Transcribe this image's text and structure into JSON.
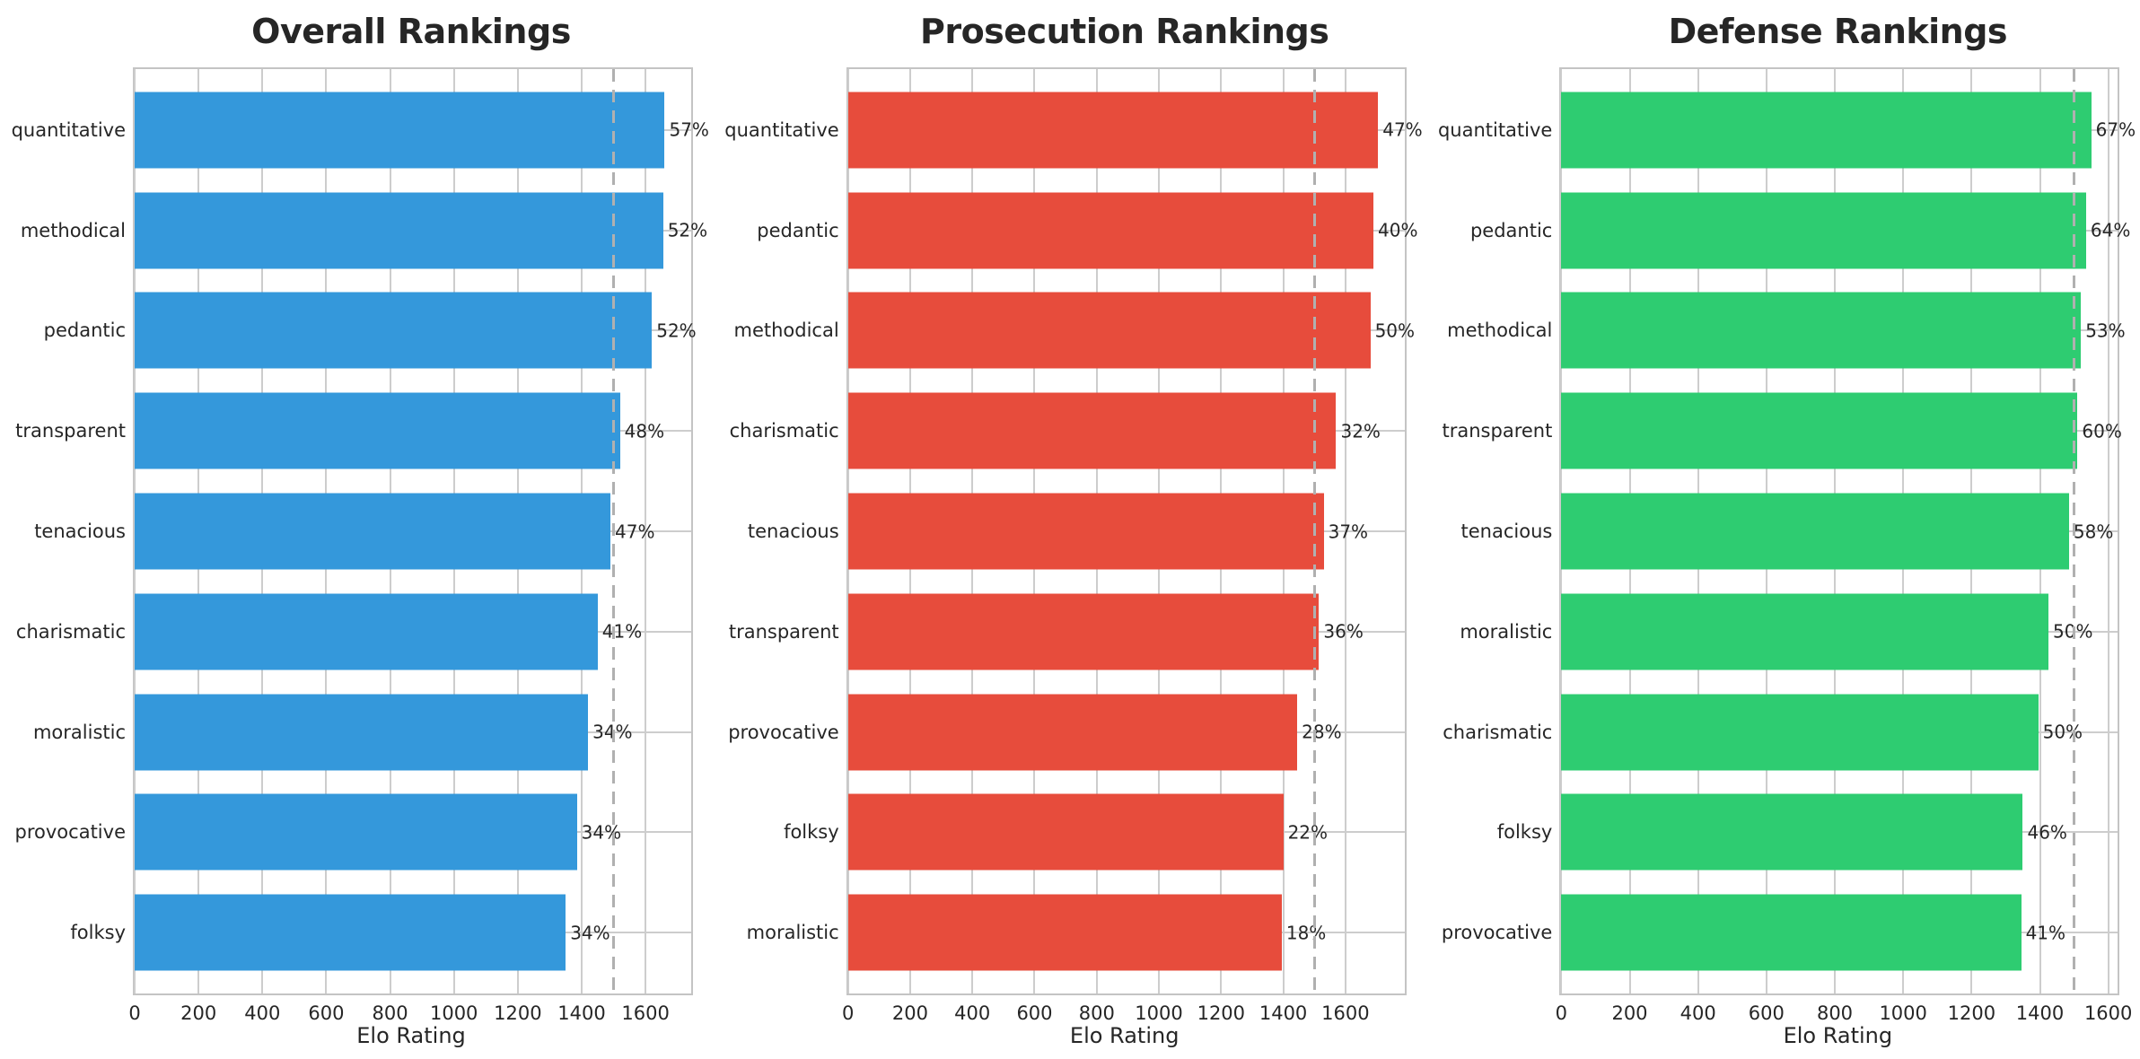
{
  "figure": {
    "background": "#ffffff",
    "grid_color": "#cdcdcd",
    "spine_color": "#c4c4c4",
    "baseline_color": "#b0b0b0",
    "text_color": "#262626"
  },
  "chart_data": [
    {
      "type": "bar",
      "orientation": "horizontal",
      "title": "Overall Rankings",
      "xlabel": "Elo Rating",
      "color": "#3498db",
      "baseline_elo": 1500,
      "xlim": [
        0,
        1743
      ],
      "xticks": [
        0,
        200,
        400,
        600,
        800,
        1000,
        1200,
        1400,
        1600
      ],
      "grid": true,
      "categories": [
        "quantitative",
        "methodical",
        "pedantic",
        "transparent",
        "tenacious",
        "charismatic",
        "moralistic",
        "provocative",
        "folksy"
      ],
      "values": [
        1660,
        1655,
        1620,
        1520,
        1490,
        1450,
        1420,
        1385,
        1350
      ],
      "bar_labels": [
        "57%",
        "52%",
        "52%",
        "48%",
        "47%",
        "41%",
        "34%",
        "34%",
        "34%"
      ]
    },
    {
      "type": "bar",
      "orientation": "horizontal",
      "title": "Prosecution Rankings",
      "xlabel": "Elo Rating",
      "color": "#e74c3c",
      "baseline_elo": 1500,
      "xlim": [
        0,
        1790
      ],
      "xticks": [
        0,
        200,
        400,
        600,
        800,
        1000,
        1200,
        1400,
        1600
      ],
      "grid": true,
      "categories": [
        "quantitative",
        "pedantic",
        "methodical",
        "charismatic",
        "tenacious",
        "transparent",
        "provocative",
        "folksy",
        "moralistic"
      ],
      "values": [
        1705,
        1690,
        1680,
        1570,
        1530,
        1515,
        1445,
        1400,
        1395
      ],
      "bar_labels": [
        "47%",
        "40%",
        "50%",
        "32%",
        "37%",
        "36%",
        "28%",
        "22%",
        "18%"
      ]
    },
    {
      "type": "bar",
      "orientation": "horizontal",
      "title": "Defense Rankings",
      "xlabel": "Elo Rating",
      "color": "#2ecc71",
      "baseline_elo": 1500,
      "xlim": [
        0,
        1628
      ],
      "xticks": [
        0,
        200,
        400,
        600,
        800,
        1000,
        1200,
        1400,
        1600
      ],
      "grid": true,
      "categories": [
        "quantitative",
        "pedantic",
        "methodical",
        "transparent",
        "tenacious",
        "moralistic",
        "charismatic",
        "folksy",
        "provocative"
      ],
      "values": [
        1550,
        1535,
        1520,
        1510,
        1485,
        1425,
        1395,
        1350,
        1345
      ],
      "bar_labels": [
        "67%",
        "64%",
        "53%",
        "60%",
        "58%",
        "50%",
        "50%",
        "46%",
        "41%"
      ]
    }
  ]
}
